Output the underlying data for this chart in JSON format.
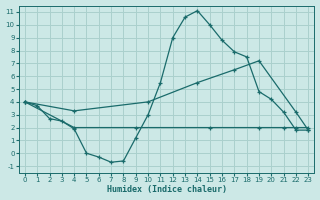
{
  "xlabel": "Humidex (Indice chaleur)",
  "bg_color": "#cce8e6",
  "grid_color": "#aad0cd",
  "line_color": "#1a6b6b",
  "xlim": [
    -0.5,
    23.5
  ],
  "ylim": [
    -1.5,
    11.5
  ],
  "xticks": [
    0,
    1,
    2,
    3,
    4,
    5,
    6,
    7,
    8,
    9,
    10,
    11,
    12,
    13,
    14,
    15,
    16,
    17,
    18,
    19,
    20,
    21,
    22,
    23
  ],
  "yticks": [
    -1,
    0,
    1,
    2,
    3,
    4,
    5,
    6,
    7,
    8,
    9,
    10,
    11
  ],
  "line1_x": [
    0,
    1,
    2,
    3,
    4,
    5,
    6,
    7,
    8,
    9,
    10,
    11,
    12,
    13,
    14,
    15,
    16,
    17,
    18,
    19,
    20,
    21,
    22,
    23
  ],
  "line1_y": [
    4.0,
    3.7,
    2.7,
    2.5,
    1.9,
    0.0,
    -0.3,
    -0.7,
    -0.6,
    1.2,
    3.0,
    5.5,
    9.0,
    10.6,
    11.1,
    10.0,
    8.8,
    7.9,
    7.5,
    4.8,
    4.2,
    3.2,
    1.8,
    1.8
  ],
  "line2_x": [
    0,
    4,
    9,
    15,
    19,
    21,
    22,
    23
  ],
  "line2_y": [
    4.0,
    2.0,
    2.0,
    2.0,
    2.0,
    2.0,
    2.0,
    2.0
  ],
  "line3_x": [
    0,
    4,
    10,
    14,
    17,
    19,
    22,
    23
  ],
  "line3_y": [
    4.0,
    3.3,
    4.0,
    5.5,
    6.5,
    7.2,
    3.2,
    1.8
  ]
}
